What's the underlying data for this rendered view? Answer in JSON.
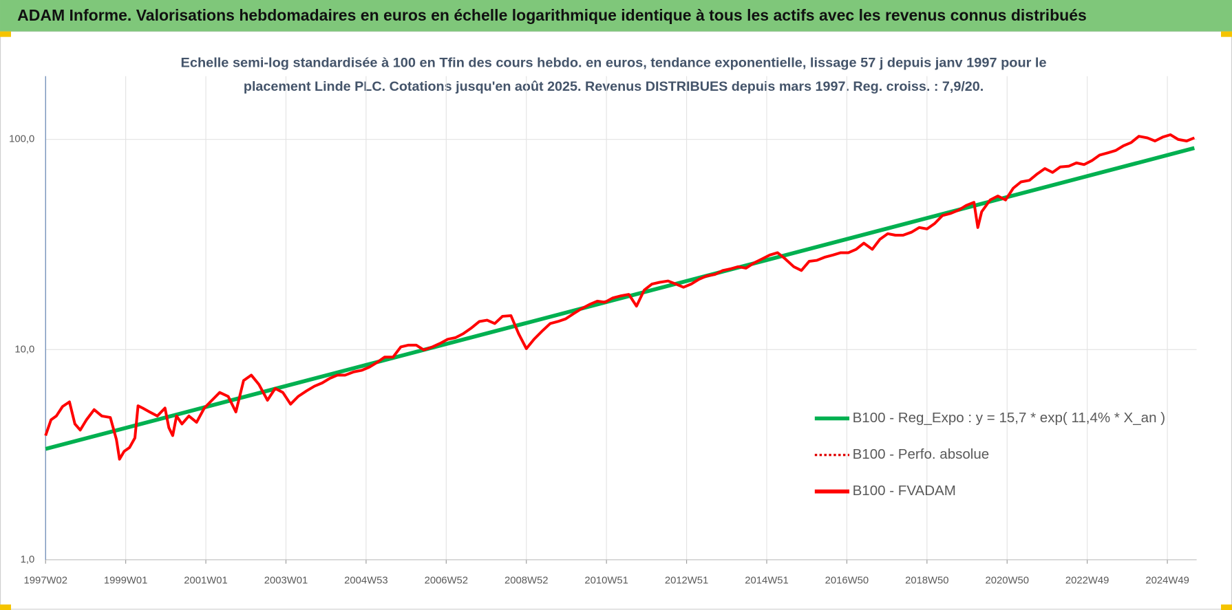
{
  "chart_data": {
    "type": "line",
    "header": "ADAM Informe. Valorisations hebdomadaires en euros en échelle logarithmique identique à tous les actifs avec les revenus connus distribués",
    "subtitle": [
      "Echelle semi-log standardisée à 100 en Tfin des cours hebdo. en euros, tendance exponentielle, lissage 57 j depuis janv 1997 pour le",
      "placement Linde PLC. Cotations jusqu'en août 2025. Revenus DISTRIBUES depuis mars 1997. Reg. croiss. : 7,9/20."
    ],
    "yscale": "log",
    "ylim": [
      1,
      200
    ],
    "yticks": [
      {
        "value": 1,
        "label": "1,0"
      },
      {
        "value": 10,
        "label": "10,0"
      },
      {
        "value": 100,
        "label": "100,0"
      }
    ],
    "xlim": [
      0,
      1494
    ],
    "xticks": [
      {
        "value": 0,
        "label": "1997W02"
      },
      {
        "value": 104,
        "label": "1999W01"
      },
      {
        "value": 208,
        "label": "2001W01"
      },
      {
        "value": 312,
        "label": "2003W01"
      },
      {
        "value": 416,
        "label": "2004W53"
      },
      {
        "value": 520,
        "label": "2006W52"
      },
      {
        "value": 624,
        "label": "2008W52"
      },
      {
        "value": 728,
        "label": "2010W51"
      },
      {
        "value": 832,
        "label": "2012W51"
      },
      {
        "value": 936,
        "label": "2014W51"
      },
      {
        "value": 1040,
        "label": "2016W50"
      },
      {
        "value": 1144,
        "label": "2018W50"
      },
      {
        "value": 1248,
        "label": "2020W50"
      },
      {
        "value": 1352,
        "label": "2022W49"
      },
      {
        "value": 1456,
        "label": "2024W49"
      }
    ],
    "grid": true,
    "legend": "right",
    "series": [
      {
        "name": "B100 - Reg_Expo : y = 15,7 * exp( 11,4% *  X_an )",
        "color": "#00b050",
        "style": "solid",
        "x": [
          0,
          1491
        ],
        "values": [
          3.37,
          91
        ]
      },
      {
        "name": "B100 - Perfo. absolue",
        "color": "#e00000",
        "style": "dotted",
        "x": [
          0,
          7,
          14,
          22,
          31,
          38,
          45,
          53,
          63,
          73,
          84,
          92,
          96,
          102,
          109,
          116,
          120,
          126,
          135,
          145,
          155,
          160,
          165,
          170,
          177,
          186,
          196,
          206,
          216,
          226,
          237,
          247,
          257,
          267,
          277,
          288,
          298,
          308,
          318,
          328,
          339,
          349,
          359,
          369,
          379,
          389,
          400,
          410,
          420,
          430,
          440,
          451,
          461,
          471,
          481,
          491,
          502,
          512,
          522,
          532,
          542,
          553,
          563,
          573,
          583,
          593,
          604,
          614,
          624,
          634,
          644,
          655,
          665,
          675,
          685,
          695,
          706,
          716,
          726,
          736,
          746,
          757,
          767,
          777,
          787,
          797,
          808,
          818,
          828,
          838,
          848,
          858,
          869,
          879,
          889,
          899,
          909,
          920,
          930,
          940,
          950,
          960,
          971,
          981,
          991,
          1001,
          1011,
          1022,
          1032,
          1042,
          1052,
          1062,
          1073,
          1083,
          1093,
          1103,
          1113,
          1124,
          1134,
          1144,
          1154,
          1164,
          1175,
          1185,
          1195,
          1205,
          1210,
          1215,
          1226,
          1236,
          1246,
          1256,
          1266,
          1277,
          1287,
          1297,
          1307,
          1317,
          1328,
          1338,
          1348,
          1358,
          1368,
          1379,
          1389,
          1399,
          1409,
          1419,
          1430,
          1440,
          1450,
          1460,
          1470,
          1481,
          1491
        ],
        "values": [
          3.9,
          4.63,
          4.83,
          5.36,
          5.64,
          4.43,
          4.14,
          4.63,
          5.18,
          4.83,
          4.75,
          3.73,
          3.01,
          3.28,
          3.42,
          3.8,
          5.4,
          5.27,
          5.05,
          4.83,
          5.27,
          4.25,
          3.9,
          4.83,
          4.43,
          4.83,
          4.51,
          5.27,
          5.74,
          6.25,
          5.99,
          5.05,
          7.12,
          7.56,
          6.82,
          5.74,
          6.53,
          6.25,
          5.5,
          5.99,
          6.37,
          6.7,
          6.94,
          7.3,
          7.56,
          7.56,
          7.83,
          7.96,
          8.24,
          8.68,
          9.21,
          9.21,
          10.3,
          10.5,
          10.5,
          9.96,
          10.3,
          10.7,
          11.2,
          11.4,
          11.9,
          12.7,
          13.6,
          13.8,
          13.3,
          14.4,
          14.5,
          11.9,
          10.1,
          11.2,
          12.2,
          13.3,
          13.6,
          14.0,
          14.8,
          15.6,
          16.4,
          17.0,
          16.8,
          17.6,
          18.0,
          18.3,
          16.1,
          19.2,
          20.5,
          20.9,
          21.2,
          20.5,
          19.8,
          20.5,
          21.6,
          22.4,
          22.8,
          23.8,
          24.2,
          24.8,
          24.4,
          25.9,
          27.0,
          28.2,
          28.9,
          27.0,
          24.8,
          23.8,
          26.3,
          26.6,
          27.5,
          28.2,
          28.9,
          28.9,
          30.0,
          32.1,
          30.0,
          33.5,
          35.6,
          35.0,
          35.0,
          36.2,
          38.1,
          37.5,
          39.8,
          43.4,
          44.5,
          46.1,
          48.5,
          50.2,
          38.1,
          45.3,
          51.5,
          53.8,
          51.5,
          58.6,
          62.8,
          63.9,
          68.5,
          72.7,
          69.7,
          74.0,
          74.6,
          77.3,
          75.9,
          79.3,
          84.2,
          86.4,
          88.6,
          93.3,
          96.6,
          103.5,
          101.7,
          98.3,
          102.6,
          105.3,
          100,
          98.3,
          101.7
        ]
      },
      {
        "name": "B100 - FVADAM",
        "color": "#ff0000",
        "style": "solid",
        "x": [
          0,
          7,
          14,
          22,
          31,
          38,
          45,
          53,
          63,
          73,
          84,
          92,
          96,
          102,
          109,
          116,
          120,
          126,
          135,
          145,
          155,
          160,
          165,
          170,
          177,
          186,
          196,
          206,
          216,
          226,
          237,
          247,
          257,
          267,
          277,
          288,
          298,
          308,
          318,
          328,
          339,
          349,
          359,
          369,
          379,
          389,
          400,
          410,
          420,
          430,
          440,
          451,
          461,
          471,
          481,
          491,
          502,
          512,
          522,
          532,
          542,
          553,
          563,
          573,
          583,
          593,
          604,
          614,
          624,
          634,
          644,
          655,
          665,
          675,
          685,
          695,
          706,
          716,
          726,
          736,
          746,
          757,
          767,
          777,
          787,
          797,
          808,
          818,
          828,
          838,
          848,
          858,
          869,
          879,
          889,
          899,
          909,
          920,
          930,
          940,
          950,
          960,
          971,
          981,
          991,
          1001,
          1011,
          1022,
          1032,
          1042,
          1052,
          1062,
          1073,
          1083,
          1093,
          1103,
          1113,
          1124,
          1134,
          1144,
          1154,
          1164,
          1175,
          1185,
          1195,
          1205,
          1210,
          1215,
          1226,
          1236,
          1246,
          1256,
          1266,
          1277,
          1287,
          1297,
          1307,
          1317,
          1328,
          1338,
          1348,
          1358,
          1368,
          1379,
          1389,
          1399,
          1409,
          1419,
          1430,
          1440,
          1450,
          1460,
          1470,
          1481,
          1491
        ],
        "values": [
          3.9,
          4.63,
          4.83,
          5.36,
          5.64,
          4.43,
          4.14,
          4.63,
          5.18,
          4.83,
          4.75,
          3.73,
          3.01,
          3.28,
          3.42,
          3.8,
          5.4,
          5.27,
          5.05,
          4.83,
          5.27,
          4.25,
          3.9,
          4.83,
          4.43,
          4.83,
          4.51,
          5.27,
          5.74,
          6.25,
          5.99,
          5.05,
          7.12,
          7.56,
          6.82,
          5.74,
          6.53,
          6.25,
          5.5,
          5.99,
          6.37,
          6.7,
          6.94,
          7.3,
          7.56,
          7.56,
          7.83,
          7.96,
          8.24,
          8.68,
          9.21,
          9.21,
          10.3,
          10.5,
          10.5,
          9.96,
          10.3,
          10.7,
          11.2,
          11.4,
          11.9,
          12.7,
          13.6,
          13.8,
          13.3,
          14.4,
          14.5,
          11.9,
          10.1,
          11.2,
          12.2,
          13.3,
          13.6,
          14.0,
          14.8,
          15.6,
          16.4,
          17.0,
          16.8,
          17.6,
          18.0,
          18.3,
          16.1,
          19.2,
          20.5,
          20.9,
          21.2,
          20.5,
          19.8,
          20.5,
          21.6,
          22.4,
          22.8,
          23.8,
          24.2,
          24.8,
          24.4,
          25.9,
          27.0,
          28.2,
          28.9,
          27.0,
          24.8,
          23.8,
          26.3,
          26.6,
          27.5,
          28.2,
          28.9,
          28.9,
          30.0,
          32.1,
          30.0,
          33.5,
          35.6,
          35.0,
          35.0,
          36.2,
          38.1,
          37.5,
          39.8,
          43.4,
          44.5,
          46.1,
          48.5,
          50.2,
          38.1,
          45.3,
          51.5,
          53.8,
          51.5,
          58.6,
          62.8,
          63.9,
          68.5,
          72.7,
          69.7,
          74.0,
          74.6,
          77.3,
          75.9,
          79.3,
          84.2,
          86.4,
          88.6,
          93.3,
          96.6,
          103.5,
          101.7,
          98.3,
          102.6,
          105.3,
          100,
          98.3,
          101.7
        ]
      }
    ]
  }
}
